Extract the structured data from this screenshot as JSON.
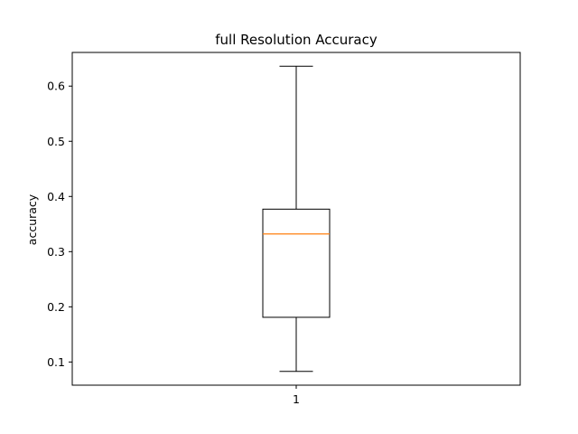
{
  "chart_data": {
    "type": "box",
    "title": "full Resolution Accuracy",
    "xlabel": "",
    "ylabel": "accuracy",
    "categories": [
      "1"
    ],
    "boxes": [
      {
        "category": "1",
        "whisker_low": 0.083,
        "q1": 0.181,
        "median": 0.332,
        "q3": 0.377,
        "whisker_high": 0.636
      }
    ],
    "ylim": [
      0.058,
      0.661
    ],
    "yticks": [
      0.1,
      0.2,
      0.3,
      0.4,
      0.5,
      0.6
    ],
    "ytick_labels": [
      "0.1",
      "0.2",
      "0.3",
      "0.4",
      "0.5",
      "0.6"
    ],
    "grid": false,
    "colors": {
      "box": "#000000",
      "median": "#ff7f0e",
      "whisker": "#000000"
    }
  }
}
